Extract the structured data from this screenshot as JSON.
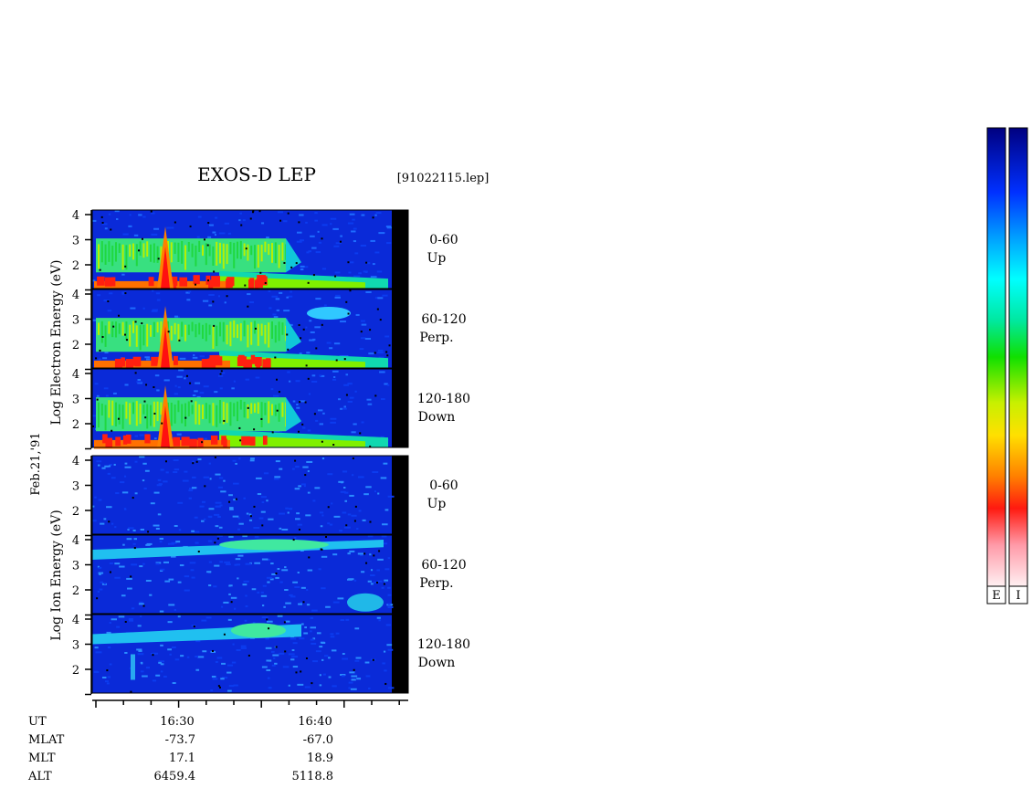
{
  "title": "EXOS-D LEP",
  "file_label": "[91022115.lep]",
  "date_label": "Feb.21,'91",
  "electron_axis_label": "Log   Electron   Energy (eV)",
  "ion_axis_label": "Log    Ion   Energy (eV)",
  "colorbar_labels": [
    "E",
    "I"
  ],
  "colors": {
    "colormap": [
      "#fff0f2",
      "#ff9aa8",
      "#ff2010",
      "#ff8000",
      "#ffe000",
      "#c8f000",
      "#20e000",
      "#00e8a0",
      "#00ffff",
      "#00a0ff",
      "#0030ff",
      "#000090"
    ],
    "background": "#0a2ad8",
    "blackout": "#000000"
  },
  "chart_data": {
    "type": "heatmap",
    "title": "EXOS-D LEP",
    "ylabel_electron": "Log   Electron   Energy (eV)",
    "ylabel_ion": "Log    Ion   Energy (eV)",
    "yticks": [
      "4",
      "3",
      "2"
    ],
    "ylim": [
      1,
      4
    ],
    "panels": [
      {
        "species": "Electron",
        "pitch": "0-60",
        "dir": "Up"
      },
      {
        "species": "Electron",
        "pitch": "60-120",
        "dir": "Perp."
      },
      {
        "species": "Electron",
        "pitch": "120-180",
        "dir": "Down"
      },
      {
        "species": "Ion",
        "pitch": "0-60",
        "dir": "Up"
      },
      {
        "species": "Ion",
        "pitch": "60-120",
        "dir": "Perp."
      },
      {
        "species": "Ion",
        "pitch": "120-180",
        "dir": "Down"
      }
    ],
    "ephemeris": {
      "rows": [
        {
          "label": "UT",
          "values": [
            "16:30",
            "16:40"
          ]
        },
        {
          "label": "MLAT",
          "values": [
            "-73.7",
            "-67.0"
          ]
        },
        {
          "label": "MLT",
          "values": [
            "17.1",
            "18.9"
          ]
        },
        {
          "label": "ALT",
          "values": [
            "6459.4",
            "5118.8"
          ]
        }
      ]
    }
  }
}
